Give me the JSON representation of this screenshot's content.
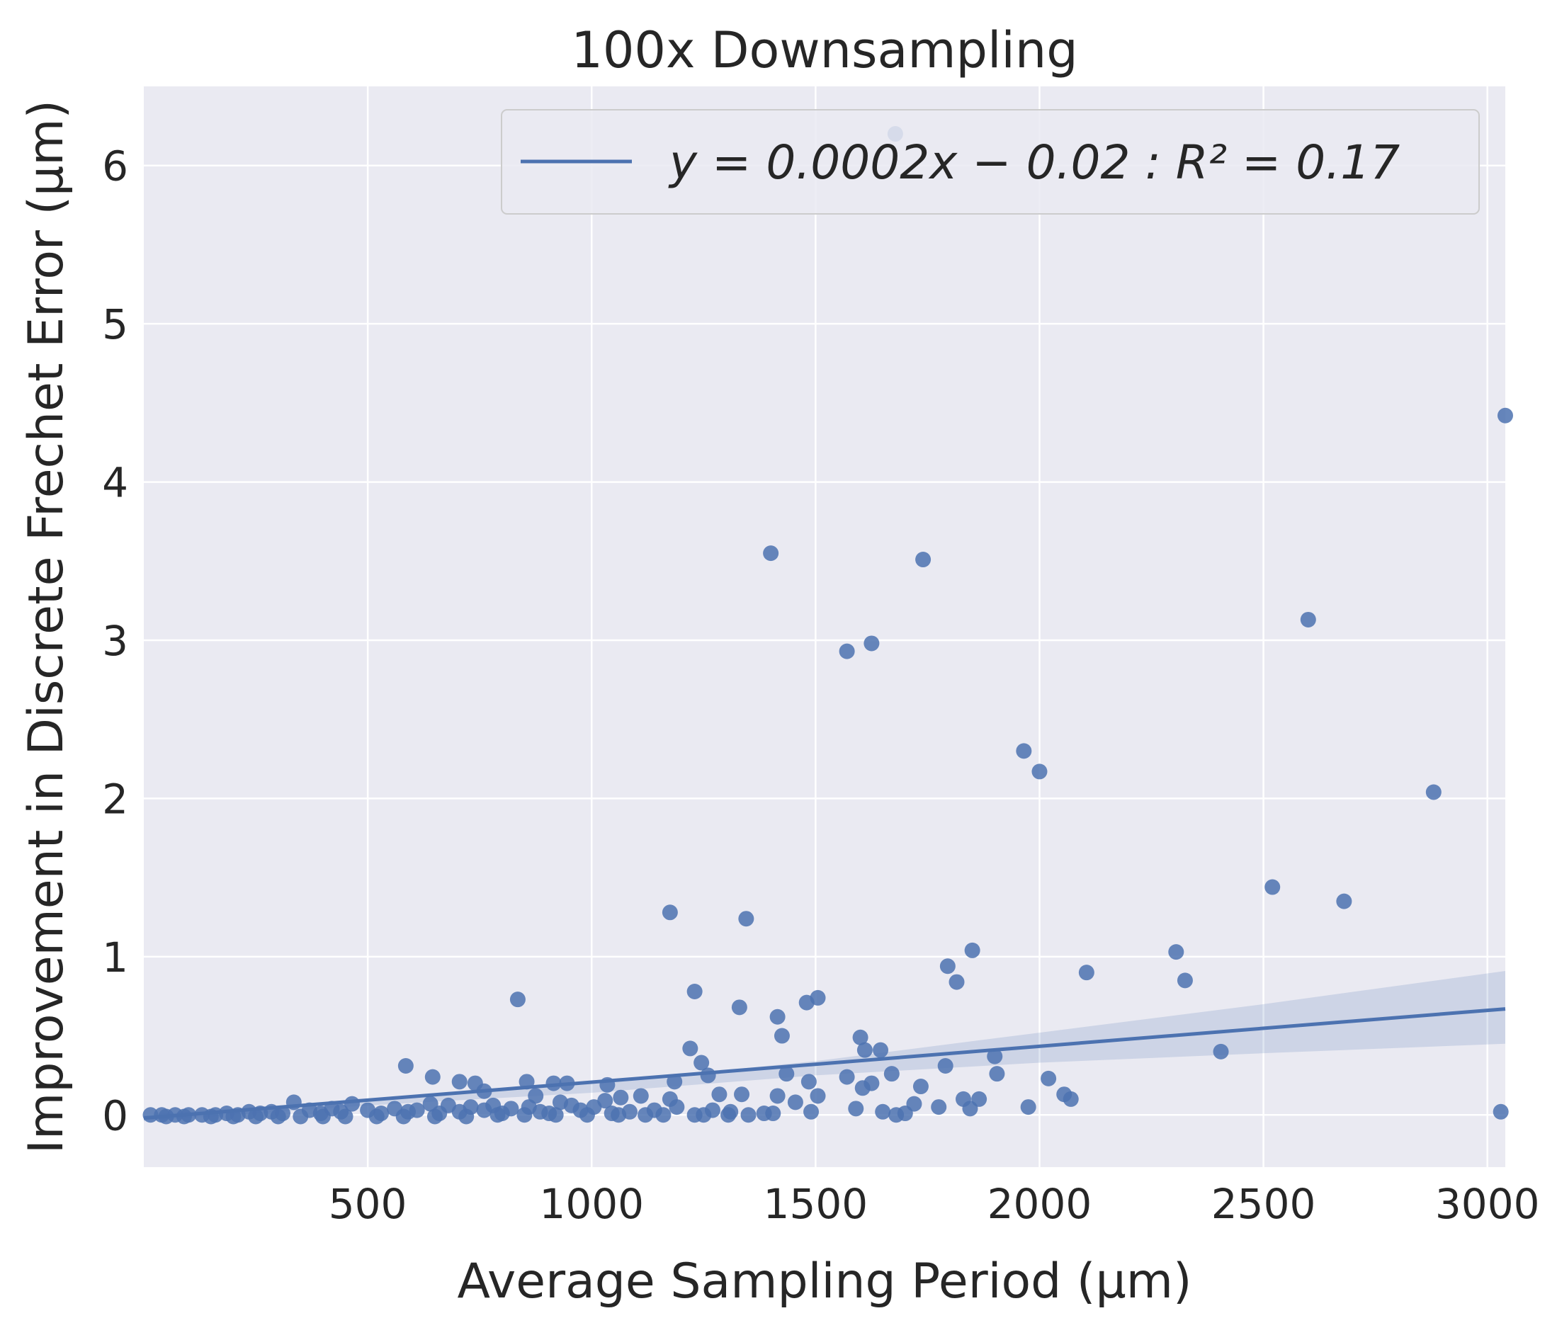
{
  "chart_data": {
    "type": "scatter",
    "title": "100x Downsampling",
    "xlabel": "Average Sampling Period (μm)",
    "ylabel": "Improvement in Discrete Frechet Error (μm)",
    "xlim": [
      0,
      3040
    ],
    "ylim": [
      -0.33,
      6.5
    ],
    "xticks": [
      500,
      1000,
      1500,
      2000,
      2500,
      3000
    ],
    "yticks": [
      0,
      1,
      2,
      3,
      4,
      5,
      6
    ],
    "grid": true,
    "background": "#eaeaf2",
    "point_color": "#4c72b0",
    "legend": {
      "placement": "top-right",
      "label": "y = 0.0002x − 0.02 : R² = 0.17"
    },
    "regression": {
      "slope": 0.0002,
      "intercept": -0.02,
      "r2": 0.17,
      "line": [
        [
          0,
          -0.02
        ],
        [
          3040,
          0.67
        ]
      ],
      "ci_upper": [
        [
          0,
          0.0
        ],
        [
          500,
          0.1
        ],
        [
          1000,
          0.2
        ],
        [
          1500,
          0.34
        ],
        [
          2000,
          0.52
        ],
        [
          2500,
          0.7
        ],
        [
          3040,
          0.91
        ]
      ],
      "ci_lower": [
        [
          0,
          -0.04
        ],
        [
          500,
          0.06
        ],
        [
          1000,
          0.14
        ],
        [
          1500,
          0.25
        ],
        [
          2000,
          0.33
        ],
        [
          2500,
          0.39
        ],
        [
          3040,
          0.45
        ]
      ]
    },
    "points": [
      [
        1678,
        6.2
      ],
      [
        3040,
        4.42
      ],
      [
        1400,
        3.55
      ],
      [
        1740,
        3.51
      ],
      [
        2600,
        3.13
      ],
      [
        1570,
        2.93
      ],
      [
        1625,
        2.98
      ],
      [
        1965,
        2.3
      ],
      [
        2000,
        2.17
      ],
      [
        2880,
        2.04
      ],
      [
        2520,
        1.44
      ],
      [
        2680,
        1.35
      ],
      [
        1175,
        1.28
      ],
      [
        1345,
        1.24
      ],
      [
        1850,
        1.04
      ],
      [
        2305,
        1.03
      ],
      [
        1795,
        0.94
      ],
      [
        1815,
        0.84
      ],
      [
        2105,
        0.9
      ],
      [
        2325,
        0.85
      ],
      [
        835,
        0.73
      ],
      [
        1230,
        0.78
      ],
      [
        1330,
        0.68
      ],
      [
        1480,
        0.71
      ],
      [
        1505,
        0.74
      ],
      [
        1415,
        0.62
      ],
      [
        1425,
        0.5
      ],
      [
        1600,
        0.49
      ],
      [
        1610,
        0.41
      ],
      [
        1645,
        0.41
      ],
      [
        1220,
        0.42
      ],
      [
        2405,
        0.4
      ],
      [
        1245,
        0.33
      ],
      [
        1260,
        0.25
      ],
      [
        1900,
        0.37
      ],
      [
        1790,
        0.31
      ],
      [
        1905,
        0.26
      ],
      [
        1670,
        0.26
      ],
      [
        1570,
        0.24
      ],
      [
        2020,
        0.23
      ],
      [
        1625,
        0.2
      ],
      [
        1605,
        0.17
      ],
      [
        1735,
        0.18
      ],
      [
        1485,
        0.21
      ],
      [
        1435,
        0.26
      ],
      [
        1185,
        0.21
      ],
      [
        1035,
        0.19
      ],
      [
        945,
        0.2
      ],
      [
        915,
        0.2
      ],
      [
        855,
        0.21
      ],
      [
        740,
        0.2
      ],
      [
        705,
        0.21
      ],
      [
        645,
        0.24
      ],
      [
        585,
        0.31
      ],
      [
        760,
        0.15
      ],
      [
        1335,
        0.13
      ],
      [
        1415,
        0.12
      ],
      [
        1505,
        0.12
      ],
      [
        1455,
        0.08
      ],
      [
        1285,
        0.13
      ],
      [
        2055,
        0.13
      ],
      [
        2070,
        0.1
      ],
      [
        1865,
        0.1
      ],
      [
        1830,
        0.1
      ],
      [
        1720,
        0.07
      ],
      [
        1775,
        0.05
      ],
      [
        1975,
        0.05
      ],
      [
        1590,
        0.04
      ],
      [
        1845,
        0.04
      ],
      [
        1490,
        0.02
      ],
      [
        1650,
        0.02
      ],
      [
        1680,
        0.0
      ],
      [
        1700,
        0.01
      ],
      [
        3030,
        0.02
      ],
      [
        1405,
        0.01
      ],
      [
        1385,
        0.01
      ],
      [
        1350,
        0.0
      ],
      [
        1310,
        0.02
      ],
      [
        1305,
        0.0
      ],
      [
        1270,
        0.03
      ],
      [
        1250,
        0.0
      ],
      [
        1230,
        0.0
      ],
      [
        1190,
        0.05
      ],
      [
        1175,
        0.1
      ],
      [
        1140,
        0.03
      ],
      [
        1110,
        0.12
      ],
      [
        1085,
        0.02
      ],
      [
        1065,
        0.11
      ],
      [
        1045,
        0.01
      ],
      [
        1030,
        0.09
      ],
      [
        1005,
        0.05
      ],
      [
        975,
        0.03
      ],
      [
        955,
        0.06
      ],
      [
        930,
        0.08
      ],
      [
        905,
        0.01
      ],
      [
        885,
        0.02
      ],
      [
        875,
        0.12
      ],
      [
        860,
        0.05
      ],
      [
        820,
        0.04
      ],
      [
        800,
        0.01
      ],
      [
        780,
        0.06
      ],
      [
        760,
        0.03
      ],
      [
        730,
        0.05
      ],
      [
        705,
        0.02
      ],
      [
        680,
        0.06
      ],
      [
        660,
        0.01
      ],
      [
        640,
        0.07
      ],
      [
        610,
        0.03
      ],
      [
        590,
        0.02
      ],
      [
        560,
        0.04
      ],
      [
        530,
        0.01
      ],
      [
        500,
        0.03
      ],
      [
        465,
        0.07
      ],
      [
        440,
        0.02
      ],
      [
        420,
        0.04
      ],
      [
        395,
        0.01
      ],
      [
        370,
        0.03
      ],
      [
        335,
        0.08
      ],
      [
        310,
        0.01
      ],
      [
        285,
        0.02
      ],
      [
        260,
        0.01
      ],
      [
        235,
        0.02
      ],
      [
        210,
        0.0
      ],
      [
        185,
        0.01
      ],
      [
        160,
        0.0
      ],
      [
        130,
        0.0
      ],
      [
        100,
        0.0
      ],
      [
        70,
        0.0
      ],
      [
        40,
        0.0
      ],
      [
        15,
        0.0
      ],
      [
        50,
        -0.01
      ],
      [
        90,
        -0.01
      ],
      [
        150,
        -0.01
      ],
      [
        200,
        -0.01
      ],
      [
        250,
        -0.01
      ],
      [
        300,
        -0.01
      ],
      [
        350,
        -0.01
      ],
      [
        400,
        -0.01
      ],
      [
        450,
        -0.01
      ],
      [
        520,
        -0.01
      ],
      [
        580,
        -0.01
      ],
      [
        650,
        -0.01
      ],
      [
        720,
        -0.01
      ],
      [
        790,
        0.0
      ],
      [
        850,
        0.0
      ],
      [
        920,
        0.0
      ],
      [
        990,
        0.0
      ],
      [
        1060,
        0.0
      ],
      [
        1120,
        0.0
      ],
      [
        1160,
        0.0
      ]
    ]
  }
}
